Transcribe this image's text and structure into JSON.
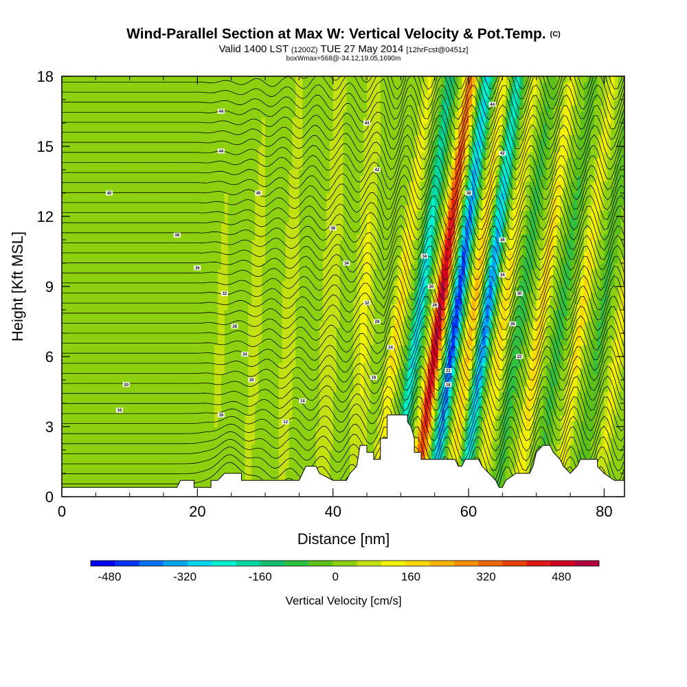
{
  "chart_data": {
    "type": "heatmap",
    "title": "Wind-Parallel Section at Max W: Vertical Velocity & Pot.Temp.",
    "title_mark": "(C)",
    "subtitle_main": "Valid 1400 LST",
    "subtitle_utc": "(1200Z)",
    "subtitle_date": "TUE 27 May 2014",
    "subtitle_forecast": "[12hrFcst@0451z]",
    "subtitle_box": "boxWmax=568@-34.12,19.05,1690m",
    "xlabel": "Distance [nm]",
    "ylabel": "Height [Kft MSL]",
    "xlim": [
      0,
      83
    ],
    "ylim": [
      0,
      18
    ],
    "xticks": [
      0,
      20,
      40,
      60,
      80
    ],
    "yticks": [
      0,
      3,
      6,
      9,
      12,
      15,
      18
    ],
    "colorbar": {
      "label": "Vertical Velocity [cm/s]",
      "range": [
        -520,
        560
      ],
      "ticks": [
        -480,
        -320,
        -160,
        0,
        160,
        320,
        480
      ],
      "colors": [
        "#0000f0",
        "#0036f5",
        "#0070f5",
        "#00a5f0",
        "#00d5ef",
        "#00f0d0",
        "#00d8a0",
        "#10c070",
        "#30c040",
        "#5cc018",
        "#8cd010",
        "#c4e010",
        "#f0f000",
        "#f8d800",
        "#f8b400",
        "#f89000",
        "#f06800",
        "#e84000",
        "#e01818",
        "#d00020",
        "#b00040"
      ]
    },
    "field": {
      "units": "cm/s",
      "wave_bands": [
        {
          "x_center": 23,
          "w_peak": 40
        },
        {
          "x_center": 28,
          "w_peak": 50
        },
        {
          "x_center": 33,
          "w_peak": 60
        },
        {
          "x_center": 39,
          "w_peak": 80
        },
        {
          "x_center": 44,
          "w_peak": 100
        },
        {
          "x_center": 48,
          "w_peak": 150
        },
        {
          "x_center": 51,
          "w_peak": -300
        },
        {
          "x_center": 54,
          "w_peak": 520
        },
        {
          "x_center": 56.5,
          "w_peak": -480
        },
        {
          "x_center": 59,
          "w_peak": 200
        },
        {
          "x_center": 61,
          "w_peak": -400
        },
        {
          "x_center": 63.5,
          "w_peak": 150
        },
        {
          "x_center": 66,
          "w_peak": -120
        },
        {
          "x_center": 69,
          "w_peak": 180
        },
        {
          "x_center": 72,
          "w_peak": -100
        },
        {
          "x_center": 75,
          "w_peak": 150
        },
        {
          "x_center": 78,
          "w_peak": -80
        },
        {
          "x_center": 81,
          "w_peak": 120
        }
      ]
    },
    "isentropes": {
      "variable": "Potential temperature",
      "labels": [
        "44",
        "44",
        "44",
        "44",
        "42",
        "42",
        "40",
        "40",
        "38",
        "38",
        "38",
        "36",
        "36",
        "34",
        "34",
        "34",
        "32",
        "32",
        "30",
        "30",
        "28",
        "28",
        "26",
        "26",
        "24",
        "24",
        "22",
        "22",
        "20",
        "20",
        "18",
        "18",
        "16",
        "16",
        "14",
        "12"
      ]
    },
    "terrain": [
      {
        "x": 0,
        "h": 0.4
      },
      {
        "x": 17,
        "h": 0.4
      },
      {
        "x": 17.5,
        "h": 0.7
      },
      {
        "x": 19.5,
        "h": 0.7
      },
      {
        "x": 19.5,
        "h": 0.4
      },
      {
        "x": 22,
        "h": 0.4
      },
      {
        "x": 22,
        "h": 0.7
      },
      {
        "x": 23,
        "h": 0.7
      },
      {
        "x": 24,
        "h": 1.0
      },
      {
        "x": 26.5,
        "h": 1.0
      },
      {
        "x": 26.5,
        "h": 0.7
      },
      {
        "x": 35,
        "h": 0.7
      },
      {
        "x": 35.5,
        "h": 1.0
      },
      {
        "x": 36,
        "h": 1.3
      },
      {
        "x": 37.5,
        "h": 1.3
      },
      {
        "x": 38,
        "h": 1.0
      },
      {
        "x": 40,
        "h": 0.7
      },
      {
        "x": 42,
        "h": 0.7
      },
      {
        "x": 42.5,
        "h": 1.0
      },
      {
        "x": 43.5,
        "h": 1.3
      },
      {
        "x": 44,
        "h": 2.2
      },
      {
        "x": 45,
        "h": 2.2
      },
      {
        "x": 45,
        "h": 1.9
      },
      {
        "x": 46,
        "h": 1.9
      },
      {
        "x": 46,
        "h": 1.6
      },
      {
        "x": 47,
        "h": 1.6
      },
      {
        "x": 47,
        "h": 2.5
      },
      {
        "x": 48,
        "h": 2.5
      },
      {
        "x": 48,
        "h": 3.5
      },
      {
        "x": 51,
        "h": 3.5
      },
      {
        "x": 51,
        "h": 3.2
      },
      {
        "x": 51.5,
        "h": 3.0
      },
      {
        "x": 52,
        "h": 2.5
      },
      {
        "x": 52,
        "h": 1.9
      },
      {
        "x": 53,
        "h": 1.9
      },
      {
        "x": 53,
        "h": 1.6
      },
      {
        "x": 58,
        "h": 1.6
      },
      {
        "x": 58.5,
        "h": 1.3
      },
      {
        "x": 59,
        "h": 1.3
      },
      {
        "x": 59.5,
        "h": 1.6
      },
      {
        "x": 61.5,
        "h": 1.6
      },
      {
        "x": 62,
        "h": 1.3
      },
      {
        "x": 63,
        "h": 1.0
      },
      {
        "x": 64,
        "h": 0.7
      },
      {
        "x": 64.5,
        "h": 0.4
      },
      {
        "x": 65,
        "h": 0.4
      },
      {
        "x": 65.5,
        "h": 0.7
      },
      {
        "x": 67,
        "h": 1.0
      },
      {
        "x": 69,
        "h": 1.0
      },
      {
        "x": 69.5,
        "h": 1.3
      },
      {
        "x": 70,
        "h": 1.9
      },
      {
        "x": 71,
        "h": 2.2
      },
      {
        "x": 72,
        "h": 2.2
      },
      {
        "x": 72.5,
        "h": 1.9
      },
      {
        "x": 73.5,
        "h": 1.6
      },
      {
        "x": 74,
        "h": 1.3
      },
      {
        "x": 75,
        "h": 1.0
      },
      {
        "x": 76,
        "h": 1.3
      },
      {
        "x": 76.5,
        "h": 1.6
      },
      {
        "x": 79,
        "h": 1.6
      },
      {
        "x": 79,
        "h": 1.3
      },
      {
        "x": 80,
        "h": 1.0
      },
      {
        "x": 81.5,
        "h": 0.7
      },
      {
        "x": 83,
        "h": 0.7
      }
    ]
  }
}
